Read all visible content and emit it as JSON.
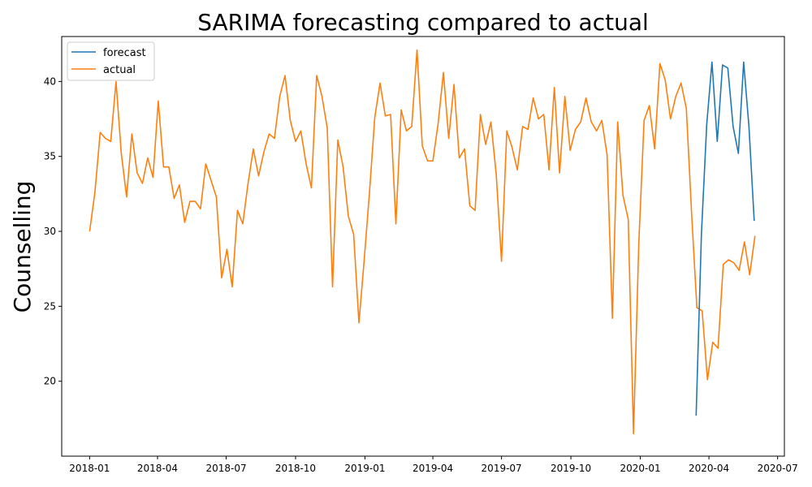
{
  "chart_data": {
    "type": "line",
    "title": "SARIMA forecasting compared to actual",
    "xlabel": "",
    "ylabel": "Counselling",
    "x_axis": {
      "kind": "date",
      "range": [
        "2017-11-25",
        "2020-07-10"
      ],
      "ticks": [
        "2018-01-01",
        "2018-04-01",
        "2018-07-01",
        "2018-10-01",
        "2019-01-01",
        "2019-04-01",
        "2019-07-01",
        "2019-10-01",
        "2020-01-01",
        "2020-04-01",
        "2020-07-01"
      ],
      "tick_labels": [
        "2018-01",
        "2018-04",
        "2018-07",
        "2018-10",
        "2019-01",
        "2019-04",
        "2019-07",
        "2019-10",
        "2020-01",
        "2020-04",
        "2020-07"
      ]
    },
    "y_axis": {
      "range": [
        15.0,
        43.0
      ],
      "ticks": [
        20,
        25,
        30,
        35,
        40
      ],
      "tick_labels": [
        "20",
        "25",
        "30",
        "35",
        "40"
      ]
    },
    "grid": false,
    "legend_position": "top-left",
    "series": [
      {
        "name": "forecast",
        "color": "#1f77b4",
        "points": [
          [
            "2020-03-15",
            17.7
          ],
          [
            "2020-03-22",
            29.8
          ],
          [
            "2020-03-29",
            37.1
          ],
          [
            "2020-04-05",
            41.3
          ],
          [
            "2020-04-12",
            36.0
          ],
          [
            "2020-04-19",
            41.1
          ],
          [
            "2020-04-26",
            40.9
          ],
          [
            "2020-05-03",
            37.0
          ],
          [
            "2020-05-10",
            35.2
          ],
          [
            "2020-05-17",
            41.3
          ],
          [
            "2020-05-24",
            37.0
          ],
          [
            "2020-05-31",
            30.7
          ]
        ]
      },
      {
        "name": "actual",
        "color": "#ff7f0e",
        "points": [
          [
            "2018-01-01",
            30.0
          ],
          [
            "2018-01-08",
            32.6
          ],
          [
            "2018-01-15",
            36.6
          ],
          [
            "2018-01-22",
            36.2
          ],
          [
            "2018-01-29",
            36.0
          ],
          [
            "2018-02-05",
            40.0
          ],
          [
            "2018-02-12",
            35.2
          ],
          [
            "2018-02-19",
            32.3
          ],
          [
            "2018-02-26",
            36.5
          ],
          [
            "2018-03-05",
            33.9
          ],
          [
            "2018-03-12",
            33.2
          ],
          [
            "2018-03-19",
            34.9
          ],
          [
            "2018-03-26",
            33.6
          ],
          [
            "2018-04-02",
            38.7
          ],
          [
            "2018-04-09",
            34.3
          ],
          [
            "2018-04-16",
            34.3
          ],
          [
            "2018-04-23",
            32.2
          ],
          [
            "2018-04-30",
            33.1
          ],
          [
            "2018-05-07",
            30.6
          ],
          [
            "2018-05-14",
            32.0
          ],
          [
            "2018-05-21",
            32.0
          ],
          [
            "2018-05-28",
            31.5
          ],
          [
            "2018-06-04",
            34.5
          ],
          [
            "2018-06-11",
            33.4
          ],
          [
            "2018-06-18",
            32.3
          ],
          [
            "2018-06-25",
            26.9
          ],
          [
            "2018-07-02",
            28.8
          ],
          [
            "2018-07-09",
            26.3
          ],
          [
            "2018-07-16",
            31.4
          ],
          [
            "2018-07-23",
            30.5
          ],
          [
            "2018-07-30",
            33.2
          ],
          [
            "2018-08-06",
            35.5
          ],
          [
            "2018-08-13",
            33.7
          ],
          [
            "2018-08-20",
            35.3
          ],
          [
            "2018-08-27",
            36.5
          ],
          [
            "2018-09-03",
            36.2
          ],
          [
            "2018-09-10",
            39.0
          ],
          [
            "2018-09-17",
            40.4
          ],
          [
            "2018-09-24",
            37.4
          ],
          [
            "2018-10-01",
            36.0
          ],
          [
            "2018-10-08",
            36.7
          ],
          [
            "2018-10-15",
            34.5
          ],
          [
            "2018-10-22",
            32.9
          ],
          [
            "2018-10-29",
            40.4
          ],
          [
            "2018-11-05",
            39.0
          ],
          [
            "2018-11-12",
            36.9
          ],
          [
            "2018-11-19",
            26.3
          ],
          [
            "2018-11-26",
            36.1
          ],
          [
            "2018-12-03",
            34.3
          ],
          [
            "2018-12-10",
            31.0
          ],
          [
            "2018-12-17",
            29.8
          ],
          [
            "2018-12-24",
            23.9
          ],
          [
            "2018-12-31",
            28.1
          ],
          [
            "2019-01-07",
            32.6
          ],
          [
            "2019-01-14",
            37.6
          ],
          [
            "2019-01-21",
            39.9
          ],
          [
            "2019-01-28",
            37.7
          ],
          [
            "2019-02-04",
            37.8
          ],
          [
            "2019-02-11",
            30.5
          ],
          [
            "2019-02-18",
            38.1
          ],
          [
            "2019-02-25",
            36.7
          ],
          [
            "2019-03-04",
            37.0
          ],
          [
            "2019-03-11",
            42.1
          ],
          [
            "2019-03-18",
            35.7
          ],
          [
            "2019-03-25",
            34.7
          ],
          [
            "2019-04-01",
            34.7
          ],
          [
            "2019-04-08",
            37.2
          ],
          [
            "2019-04-15",
            40.6
          ],
          [
            "2019-04-22",
            36.2
          ],
          [
            "2019-04-29",
            39.8
          ],
          [
            "2019-05-06",
            34.9
          ],
          [
            "2019-05-13",
            35.5
          ],
          [
            "2019-05-20",
            31.7
          ],
          [
            "2019-05-27",
            31.4
          ],
          [
            "2019-06-03",
            37.8
          ],
          [
            "2019-06-10",
            35.8
          ],
          [
            "2019-06-17",
            37.3
          ],
          [
            "2019-06-24",
            33.8
          ],
          [
            "2019-07-01",
            28.0
          ],
          [
            "2019-07-08",
            36.7
          ],
          [
            "2019-07-15",
            35.6
          ],
          [
            "2019-07-22",
            34.1
          ],
          [
            "2019-07-29",
            37.0
          ],
          [
            "2019-08-05",
            36.8
          ],
          [
            "2019-08-12",
            38.9
          ],
          [
            "2019-08-19",
            37.5
          ],
          [
            "2019-08-26",
            37.8
          ],
          [
            "2019-09-02",
            34.1
          ],
          [
            "2019-09-09",
            39.6
          ],
          [
            "2019-09-16",
            33.9
          ],
          [
            "2019-09-23",
            39.0
          ],
          [
            "2019-09-30",
            35.4
          ],
          [
            "2019-10-07",
            36.8
          ],
          [
            "2019-10-14",
            37.3
          ],
          [
            "2019-10-21",
            38.9
          ],
          [
            "2019-10-28",
            37.3
          ],
          [
            "2019-11-04",
            36.7
          ],
          [
            "2019-11-11",
            37.4
          ],
          [
            "2019-11-18",
            35.1
          ],
          [
            "2019-11-25",
            24.2
          ],
          [
            "2019-12-02",
            37.3
          ],
          [
            "2019-12-09",
            32.4
          ],
          [
            "2019-12-16",
            30.8
          ],
          [
            "2019-12-23",
            16.5
          ],
          [
            "2019-12-30",
            29.2
          ],
          [
            "2020-01-06",
            37.4
          ],
          [
            "2020-01-13",
            38.4
          ],
          [
            "2020-01-20",
            35.5
          ],
          [
            "2020-01-27",
            41.2
          ],
          [
            "2020-02-03",
            40.1
          ],
          [
            "2020-02-10",
            37.5
          ],
          [
            "2020-02-17",
            39.0
          ],
          [
            "2020-02-24",
            39.9
          ],
          [
            "2020-03-02",
            38.2
          ],
          [
            "2020-03-09",
            31.2
          ],
          [
            "2020-03-16",
            24.9
          ],
          [
            "2020-03-23",
            24.7
          ],
          [
            "2020-03-30",
            20.1
          ],
          [
            "2020-04-06",
            22.6
          ],
          [
            "2020-04-13",
            22.2
          ],
          [
            "2020-04-20",
            27.8
          ],
          [
            "2020-04-27",
            28.1
          ],
          [
            "2020-05-04",
            27.9
          ],
          [
            "2020-05-11",
            27.4
          ],
          [
            "2020-05-18",
            29.3
          ],
          [
            "2020-05-25",
            27.1
          ],
          [
            "2020-06-01",
            29.7
          ]
        ]
      }
    ]
  }
}
